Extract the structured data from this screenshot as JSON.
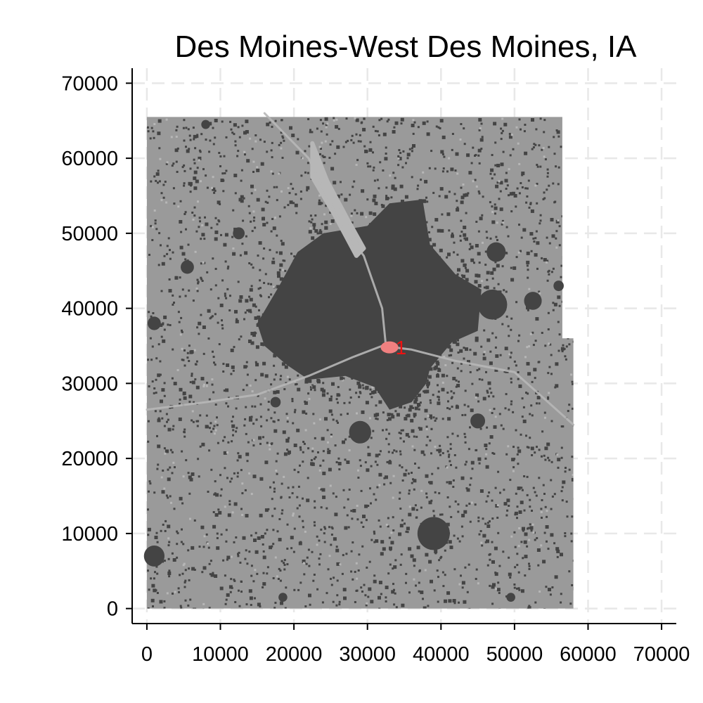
{
  "title": "Des Moines-West Des Moines, IA",
  "colors": {
    "background": "#ffffff",
    "rural_land": "#9a9a9a",
    "urban_area": "#444444",
    "water": "#b7b7b7",
    "highlight_zone": "#f08080",
    "highlight_label": "#ee1111",
    "grid": "#e8e8e8"
  },
  "chart_data": {
    "type": "map",
    "title": "Des Moines-West Des Moines, IA",
    "xlabel": "",
    "ylabel": "",
    "xlim": [
      -2000,
      72000
    ],
    "ylim": [
      -2000,
      72000
    ],
    "x_ticks": [
      0,
      10000,
      20000,
      30000,
      40000,
      50000,
      60000,
      70000
    ],
    "x_tick_labels": [
      "0",
      "10000",
      "20000",
      "30000",
      "40000",
      "50000",
      "60000",
      "70000"
    ],
    "y_ticks": [
      0,
      10000,
      20000,
      30000,
      40000,
      50000,
      60000,
      70000
    ],
    "y_tick_labels": [
      "0",
      "10000",
      "20000",
      "30000",
      "40000",
      "50000",
      "60000",
      "70000"
    ],
    "grid": true,
    "region_outline": [
      [
        0,
        0
      ],
      [
        58000,
        0
      ],
      [
        58000,
        36000
      ],
      [
        56500,
        36000
      ],
      [
        56500,
        65500
      ],
      [
        0,
        65500
      ]
    ],
    "urban_core": [
      [
        15000,
        38000
      ],
      [
        18000,
        43000
      ],
      [
        20500,
        47500
      ],
      [
        24000,
        50000
      ],
      [
        30000,
        51000
      ],
      [
        33000,
        54000
      ],
      [
        37500,
        54500
      ],
      [
        38500,
        48500
      ],
      [
        42000,
        44500
      ],
      [
        45500,
        42500
      ],
      [
        45000,
        37000
      ],
      [
        41500,
        35500
      ],
      [
        38500,
        32000
      ],
      [
        38000,
        30000
      ],
      [
        36000,
        27500
      ],
      [
        33000,
        26500
      ],
      [
        31000,
        29500
      ],
      [
        27000,
        31000
      ],
      [
        22000,
        30500
      ],
      [
        19000,
        32500
      ],
      [
        16000,
        35000
      ]
    ],
    "satellite_areas": [
      {
        "x": 1000,
        "y": 7000,
        "r": 1400
      },
      {
        "x": 39000,
        "y": 10000,
        "r": 2200
      },
      {
        "x": 29000,
        "y": 23500,
        "r": 1500
      },
      {
        "x": 47000,
        "y": 40500,
        "r": 2000
      },
      {
        "x": 47500,
        "y": 47500,
        "r": 1300
      },
      {
        "x": 52500,
        "y": 41000,
        "r": 1200
      },
      {
        "x": 5500,
        "y": 45500,
        "r": 900
      },
      {
        "x": 1000,
        "y": 38000,
        "r": 900
      },
      {
        "x": 45000,
        "y": 25000,
        "r": 1000
      },
      {
        "x": 12500,
        "y": 50000,
        "r": 800
      },
      {
        "x": 56000,
        "y": 43000,
        "r": 700
      },
      {
        "x": 17500,
        "y": 27500,
        "r": 700
      },
      {
        "x": 49500,
        "y": 1500,
        "r": 600
      },
      {
        "x": 18500,
        "y": 1500,
        "r": 600
      },
      {
        "x": 8000,
        "y": 64500,
        "r": 600
      }
    ],
    "water_features": [
      {
        "type": "lake",
        "points": [
          [
            22500,
            62000
          ],
          [
            24500,
            57000
          ],
          [
            27500,
            51500
          ],
          [
            29500,
            48000
          ],
          [
            28500,
            47000
          ],
          [
            25500,
            52500
          ],
          [
            22500,
            57500
          ]
        ]
      },
      {
        "type": "river",
        "points": [
          [
            0,
            26500
          ],
          [
            8000,
            27500
          ],
          [
            15000,
            28500
          ],
          [
            22000,
            31000
          ],
          [
            28000,
            33500
          ],
          [
            32000,
            35000
          ],
          [
            36000,
            34500
          ],
          [
            42000,
            33000
          ],
          [
            50000,
            31500
          ],
          [
            58000,
            24500
          ]
        ]
      },
      {
        "type": "river",
        "points": [
          [
            16000,
            66000
          ],
          [
            22000,
            60000
          ],
          [
            26500,
            51000
          ],
          [
            29500,
            47000
          ],
          [
            32000,
            40000
          ],
          [
            32500,
            35000
          ]
        ]
      }
    ],
    "highlight_zones": [
      {
        "label": "1",
        "x": 33000,
        "y": 34800,
        "w": 2400,
        "h": 1600
      }
    ]
  }
}
